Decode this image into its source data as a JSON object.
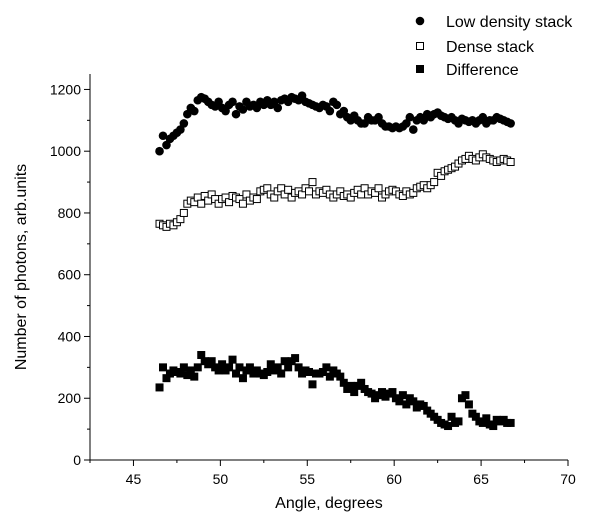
{
  "chart_data": {
    "type": "scatter",
    "xlabel": "Angle, degrees",
    "ylabel": "Number of photons, arb.units",
    "xlim": [
      42.5,
      70
    ],
    "ylim": [
      0,
      1250
    ],
    "x_ticks": [
      "45",
      "50",
      "55",
      "60",
      "65",
      "70"
    ],
    "y_ticks": [
      "0",
      "200",
      "400",
      "600",
      "800",
      "1000",
      "1200"
    ],
    "grid": false,
    "legend_position": "top-right",
    "series": [
      {
        "name": "Low density stack",
        "marker": "filled-circle",
        "color": "#000000",
        "x": [
          46.5,
          46.7,
          46.9,
          47.1,
          47.3,
          47.5,
          47.7,
          47.9,
          48.1,
          48.3,
          48.5,
          48.7,
          48.9,
          49.1,
          49.3,
          49.5,
          49.7,
          49.9,
          50.1,
          50.3,
          50.5,
          50.7,
          50.9,
          51.1,
          51.3,
          51.5,
          51.7,
          51.9,
          52.1,
          52.3,
          52.5,
          52.7,
          52.9,
          53.1,
          53.3,
          53.5,
          53.7,
          53.9,
          54.1,
          54.3,
          54.5,
          54.7,
          54.9,
          55.1,
          55.3,
          55.5,
          55.7,
          55.9,
          56.1,
          56.3,
          56.5,
          56.7,
          56.9,
          57.1,
          57.3,
          57.5,
          57.7,
          57.9,
          58.1,
          58.3,
          58.5,
          58.7,
          58.9,
          59.1,
          59.3,
          59.5,
          59.7,
          59.9,
          60.1,
          60.3,
          60.5,
          60.7,
          60.9,
          61.1,
          61.3,
          61.5,
          61.7,
          61.9,
          62.1,
          62.3,
          62.5,
          62.7,
          62.9,
          63.1,
          63.3,
          63.5,
          63.7,
          63.9,
          64.1,
          64.3,
          64.5,
          64.7,
          64.9,
          65.1,
          65.3,
          65.5,
          65.7,
          65.9,
          66.1,
          66.3,
          66.5,
          66.7
        ],
        "y": [
          1000,
          1050,
          1020,
          1040,
          1050,
          1060,
          1070,
          1090,
          1120,
          1140,
          1130,
          1165,
          1175,
          1170,
          1160,
          1150,
          1145,
          1160,
          1140,
          1130,
          1150,
          1160,
          1120,
          1145,
          1135,
          1160,
          1145,
          1150,
          1140,
          1160,
          1150,
          1165,
          1150,
          1160,
          1140,
          1165,
          1170,
          1160,
          1175,
          1170,
          1165,
          1180,
          1160,
          1155,
          1150,
          1145,
          1140,
          1150,
          1145,
          1130,
          1160,
          1150,
          1120,
          1130,
          1110,
          1100,
          1115,
          1100,
          1090,
          1090,
          1110,
          1100,
          1100,
          1110,
          1090,
          1080,
          1080,
          1075,
          1080,
          1075,
          1080,
          1090,
          1110,
          1070,
          1100,
          1110,
          1100,
          1120,
          1110,
          1120,
          1125,
          1115,
          1110,
          1105,
          1110,
          1100,
          1090,
          1105,
          1100,
          1095,
          1100,
          1090,
          1100,
          1110,
          1090,
          1100,
          1100,
          1110,
          1105,
          1100,
          1095,
          1090
        ]
      },
      {
        "name": "Dense stack",
        "marker": "open-square",
        "color": "#000000",
        "x": [
          46.5,
          46.7,
          46.9,
          47.1,
          47.3,
          47.5,
          47.7,
          47.9,
          48.1,
          48.3,
          48.5,
          48.7,
          48.9,
          49.1,
          49.3,
          49.5,
          49.7,
          49.9,
          50.1,
          50.3,
          50.5,
          50.7,
          50.9,
          51.1,
          51.3,
          51.5,
          51.7,
          51.9,
          52.1,
          52.3,
          52.5,
          52.7,
          52.9,
          53.1,
          53.3,
          53.5,
          53.7,
          53.9,
          54.1,
          54.3,
          54.5,
          54.7,
          54.9,
          55.1,
          55.3,
          55.5,
          55.7,
          55.9,
          56.1,
          56.3,
          56.5,
          56.7,
          56.9,
          57.1,
          57.3,
          57.5,
          57.7,
          57.9,
          58.1,
          58.3,
          58.5,
          58.7,
          58.9,
          59.1,
          59.3,
          59.5,
          59.7,
          59.9,
          60.1,
          60.3,
          60.5,
          60.7,
          60.9,
          61.1,
          61.3,
          61.5,
          61.7,
          61.9,
          62.1,
          62.3,
          62.5,
          62.7,
          62.9,
          63.1,
          63.3,
          63.5,
          63.7,
          63.9,
          64.1,
          64.3,
          64.5,
          64.7,
          64.9,
          65.1,
          65.3,
          65.5,
          65.7,
          65.9,
          66.1,
          66.3,
          66.5,
          66.7
        ],
        "y": [
          765,
          760,
          755,
          765,
          760,
          770,
          780,
          800,
          830,
          840,
          835,
          850,
          830,
          855,
          840,
          860,
          845,
          830,
          845,
          850,
          835,
          855,
          850,
          845,
          830,
          860,
          840,
          850,
          845,
          870,
          875,
          880,
          860,
          850,
          870,
          880,
          860,
          875,
          850,
          865,
          870,
          860,
          880,
          870,
          900,
          860,
          870,
          865,
          875,
          860,
          850,
          860,
          870,
          855,
          860,
          850,
          865,
          875,
          860,
          880,
          860,
          870,
          865,
          880,
          850,
          860,
          870,
          875,
          870,
          860,
          855,
          870,
          860,
          865,
          880,
          885,
          890,
          880,
          890,
          900,
          930,
          920,
          935,
          940,
          945,
          950,
          960,
          970,
          975,
          985,
          975,
          970,
          980,
          990,
          980,
          975,
          970,
          965,
          970,
          975,
          970,
          965
        ]
      },
      {
        "name": "Difference",
        "marker": "filled-square",
        "color": "#000000",
        "x": [
          46.5,
          46.7,
          46.9,
          47.1,
          47.3,
          47.5,
          47.7,
          47.9,
          48.1,
          48.3,
          48.5,
          48.7,
          48.9,
          49.1,
          49.3,
          49.5,
          49.7,
          49.9,
          50.1,
          50.3,
          50.5,
          50.7,
          50.9,
          51.1,
          51.3,
          51.5,
          51.7,
          51.9,
          52.1,
          52.3,
          52.5,
          52.7,
          52.9,
          53.1,
          53.3,
          53.5,
          53.7,
          53.9,
          54.1,
          54.3,
          54.5,
          54.7,
          54.9,
          55.1,
          55.3,
          55.5,
          55.7,
          55.9,
          56.1,
          56.3,
          56.5,
          56.7,
          56.9,
          57.1,
          57.3,
          57.5,
          57.7,
          57.9,
          58.1,
          58.3,
          58.5,
          58.7,
          58.9,
          59.1,
          59.3,
          59.5,
          59.7,
          59.9,
          60.1,
          60.3,
          60.5,
          60.7,
          60.9,
          61.1,
          61.3,
          61.5,
          61.7,
          61.9,
          62.1,
          62.3,
          62.5,
          62.7,
          62.9,
          63.1,
          63.3,
          63.5,
          63.7,
          63.9,
          64.1,
          64.3,
          64.5,
          64.7,
          64.9,
          65.1,
          65.3,
          65.5,
          65.7,
          65.9,
          66.1,
          66.3,
          66.5,
          66.7
        ],
        "y": [
          235,
          300,
          265,
          280,
          290,
          285,
          280,
          300,
          275,
          290,
          270,
          300,
          340,
          320,
          310,
          320,
          300,
          290,
          310,
          290,
          300,
          325,
          280,
          300,
          265,
          290,
          300,
          280,
          290,
          280,
          275,
          285,
          310,
          290,
          300,
          280,
          320,
          300,
          320,
          330,
          300,
          280,
          290,
          285,
          245,
          280,
          280,
          285,
          300,
          270,
          290,
          280,
          270,
          250,
          230,
          240,
          220,
          240,
          250,
          230,
          220,
          215,
          200,
          210,
          220,
          205,
          215,
          220,
          200,
          190,
          210,
          180,
          200,
          190,
          170,
          180,
          175,
          160,
          150,
          140,
          130,
          120,
          115,
          110,
          140,
          120,
          125,
          200,
          210,
          180,
          150,
          140,
          125,
          120,
          135,
          115,
          110,
          130,
          125,
          130,
          120,
          120
        ]
      }
    ]
  }
}
